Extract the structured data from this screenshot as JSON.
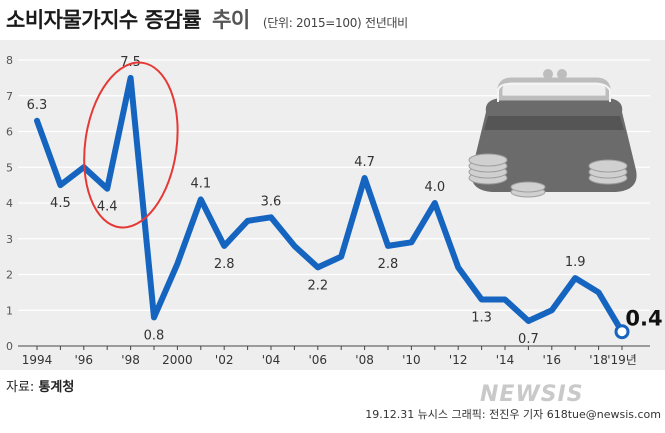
{
  "header": {
    "title_main": "소비자물가지수 증감률",
    "title_sub": "추이",
    "unit": "(단위: 2015=100) 전년대비"
  },
  "source": {
    "label": "자료:",
    "name": "통계청"
  },
  "credit": "19.12.31 뉴시스 그래픽: 전진우 기자 618tue@newsis.com",
  "watermark": "NEWSIS",
  "colors": {
    "line": "#1565c0",
    "background": "#eeeeee",
    "grid": "#ffffff",
    "highlight": "#e53935"
  },
  "chart_data": {
    "type": "line",
    "title": "소비자물가지수 증감률 추이",
    "ylim": [
      0,
      8
    ],
    "yticks": [
      0,
      1,
      2,
      3,
      4,
      5,
      6,
      7,
      8
    ],
    "xlim": [
      1994,
      2019
    ],
    "xticks": [
      {
        "x": 1994,
        "label": "1994"
      },
      {
        "x": 1996,
        "label": "'96"
      },
      {
        "x": 1998,
        "label": "'98"
      },
      {
        "x": 2000,
        "label": "2000"
      },
      {
        "x": 2002,
        "label": "'02"
      },
      {
        "x": 2004,
        "label": "'04"
      },
      {
        "x": 2006,
        "label": "'06"
      },
      {
        "x": 2008,
        "label": "'08"
      },
      {
        "x": 2010,
        "label": "'10"
      },
      {
        "x": 2012,
        "label": "'12"
      },
      {
        "x": 2014,
        "label": "'14"
      },
      {
        "x": 2016,
        "label": "'16"
      },
      {
        "x": 2018,
        "label": "'18"
      },
      {
        "x": 2019,
        "label": "'19년"
      }
    ],
    "series": [
      {
        "x": [
          1994,
          1995,
          1996,
          1997,
          1998,
          1999,
          2000,
          2001,
          2002,
          2003,
          2004,
          2005,
          2006,
          2007,
          2008,
          2009,
          2010,
          2011,
          2012,
          2013,
          2014,
          2015,
          2016,
          2017,
          2018,
          2019
        ],
        "values": [
          6.3,
          4.5,
          5.0,
          4.4,
          7.5,
          0.8,
          2.3,
          4.1,
          2.8,
          3.5,
          3.6,
          2.8,
          2.2,
          2.5,
          4.7,
          2.8,
          2.9,
          4.0,
          2.2,
          1.3,
          1.3,
          0.7,
          1.0,
          1.9,
          1.5,
          0.4
        ]
      }
    ],
    "data_labels": [
      {
        "x": 1994,
        "text": "6.3"
      },
      {
        "x": 1995,
        "text": "4.5"
      },
      {
        "x": 1997,
        "text": "4.4"
      },
      {
        "x": 1998,
        "text": "7.5"
      },
      {
        "x": 1999,
        "text": "0.8"
      },
      {
        "x": 2001,
        "text": "4.1"
      },
      {
        "x": 2002,
        "text": "2.8"
      },
      {
        "x": 2004,
        "text": "3.6"
      },
      {
        "x": 2006,
        "text": "2.2"
      },
      {
        "x": 2008,
        "text": "4.7"
      },
      {
        "x": 2009,
        "text": "2.8"
      },
      {
        "x": 2011,
        "text": "4.0"
      },
      {
        "x": 2013,
        "text": "1.3"
      },
      {
        "x": 2015,
        "text": "0.7"
      },
      {
        "x": 2017,
        "text": "1.9"
      },
      {
        "x": 2019,
        "text": "0.4"
      }
    ],
    "highlight_last": true,
    "highlight_circle_years": [
      1997,
      1998
    ]
  }
}
